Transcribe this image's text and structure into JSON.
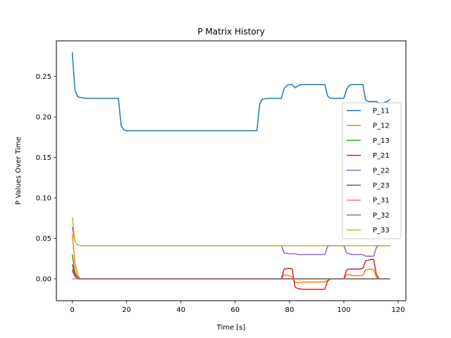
{
  "chart_data": {
    "type": "line",
    "title": "P Matrix History",
    "xlabel": "Time [s]",
    "ylabel": "P Values Over Time",
    "xlim": [
      -5.85,
      122.85
    ],
    "ylim": [
      -0.027,
      0.294
    ],
    "xticks": [
      0,
      20,
      40,
      60,
      80,
      100,
      120
    ],
    "yticks": [
      0.0,
      0.05,
      0.1,
      0.15,
      0.2,
      0.25
    ],
    "ytick_labels": [
      "0.00",
      "0.05",
      "0.10",
      "0.15",
      "0.20",
      "0.25"
    ],
    "grid": false,
    "legend_position": "center-right",
    "series": [
      {
        "name": "P_11",
        "color": "#1f77b4",
        "x": [
          0,
          1,
          2,
          3,
          5,
          10,
          17,
          18,
          19,
          20,
          25,
          40,
          60,
          68,
          69,
          70,
          72,
          77,
          78,
          79,
          80,
          81,
          82,
          83,
          84,
          86,
          90,
          93,
          94,
          95,
          96,
          100,
          101,
          102,
          103,
          105,
          107,
          108,
          109,
          110,
          112,
          113,
          114,
          115,
          116,
          117
        ],
        "y": [
          0.28,
          0.233,
          0.225,
          0.224,
          0.223,
          0.223,
          0.223,
          0.189,
          0.184,
          0.183,
          0.183,
          0.183,
          0.183,
          0.183,
          0.216,
          0.222,
          0.223,
          0.223,
          0.235,
          0.239,
          0.24,
          0.24,
          0.236,
          0.238,
          0.24,
          0.24,
          0.24,
          0.24,
          0.226,
          0.223,
          0.223,
          0.223,
          0.234,
          0.239,
          0.24,
          0.24,
          0.24,
          0.221,
          0.219,
          0.219,
          0.219,
          0.217,
          0.217,
          0.218,
          0.219,
          0.222
        ]
      },
      {
        "name": "P_12",
        "color": "#ff7f0e",
        "x": [
          0,
          1,
          2,
          3,
          5,
          77,
          78,
          80,
          81,
          82,
          83,
          85,
          93,
          94,
          95,
          96,
          100,
          101,
          102,
          103,
          106,
          107,
          108,
          110,
          111,
          112,
          113,
          117
        ],
        "y": [
          0.055,
          0.02,
          0.004,
          0.0,
          0.0,
          0.0,
          0.005,
          0.004,
          0.002,
          -0.004,
          -0.005,
          -0.004,
          -0.004,
          -0.002,
          0.0,
          0.0,
          0.0,
          0.005,
          0.005,
          0.004,
          0.004,
          0.004,
          0.011,
          0.012,
          0.011,
          0.002,
          0.0,
          0.0
        ]
      },
      {
        "name": "P_13",
        "color": "#2ca02c",
        "x": [
          0,
          1,
          2,
          3,
          117
        ],
        "y": [
          0.03,
          0.008,
          0.001,
          0.0,
          0.0
        ]
      },
      {
        "name": "P_21",
        "color": "#d62728",
        "x": [
          0,
          1,
          2,
          3,
          5,
          77,
          78,
          80,
          81,
          82,
          83,
          85,
          93,
          94,
          95,
          96,
          100,
          101,
          102,
          103,
          106,
          107,
          108,
          110,
          111,
          112,
          113,
          117
        ],
        "y": [
          0.018,
          0.005,
          0.001,
          0.0,
          0.0,
          0.0,
          0.012,
          0.013,
          0.012,
          -0.01,
          -0.012,
          -0.013,
          -0.013,
          -0.003,
          0.0,
          0.0,
          0.0,
          0.011,
          0.012,
          0.012,
          0.012,
          0.013,
          0.022,
          0.024,
          0.024,
          0.005,
          0.0,
          0.0
        ]
      },
      {
        "name": "P_22",
        "color": "#9467bd",
        "x": [
          0,
          1,
          2,
          3,
          5,
          77,
          78,
          80,
          81,
          82,
          83,
          85,
          93,
          94,
          95,
          96,
          100,
          101,
          102,
          103,
          106,
          107,
          108,
          110,
          111,
          112,
          113,
          117
        ],
        "y": [
          0.064,
          0.046,
          0.042,
          0.041,
          0.041,
          0.041,
          0.032,
          0.031,
          0.031,
          0.031,
          0.03,
          0.03,
          0.03,
          0.04,
          0.041,
          0.041,
          0.041,
          0.032,
          0.031,
          0.03,
          0.03,
          0.03,
          0.028,
          0.028,
          0.028,
          0.039,
          0.041,
          0.041
        ]
      },
      {
        "name": "P_23",
        "color": "#8c564b",
        "x": [
          0,
          1,
          2,
          3,
          117
        ],
        "y": [
          0.01,
          0.003,
          0.0,
          0.0,
          0.0
        ]
      },
      {
        "name": "P_31",
        "color": "#e377c2",
        "x": [
          0,
          1,
          2,
          117
        ],
        "y": [
          0.0,
          0.0,
          0.0,
          0.0
        ]
      },
      {
        "name": "P_32",
        "color": "#7f7f7f",
        "x": [
          0,
          1,
          2,
          3,
          117
        ],
        "y": [
          0.012,
          0.003,
          0.0,
          0.0,
          0.0
        ]
      },
      {
        "name": "P_33",
        "color": "#bcbd22",
        "x": [
          0,
          1,
          2,
          3,
          5,
          117
        ],
        "y": [
          0.076,
          0.046,
          0.042,
          0.041,
          0.041,
          0.041
        ]
      }
    ]
  }
}
